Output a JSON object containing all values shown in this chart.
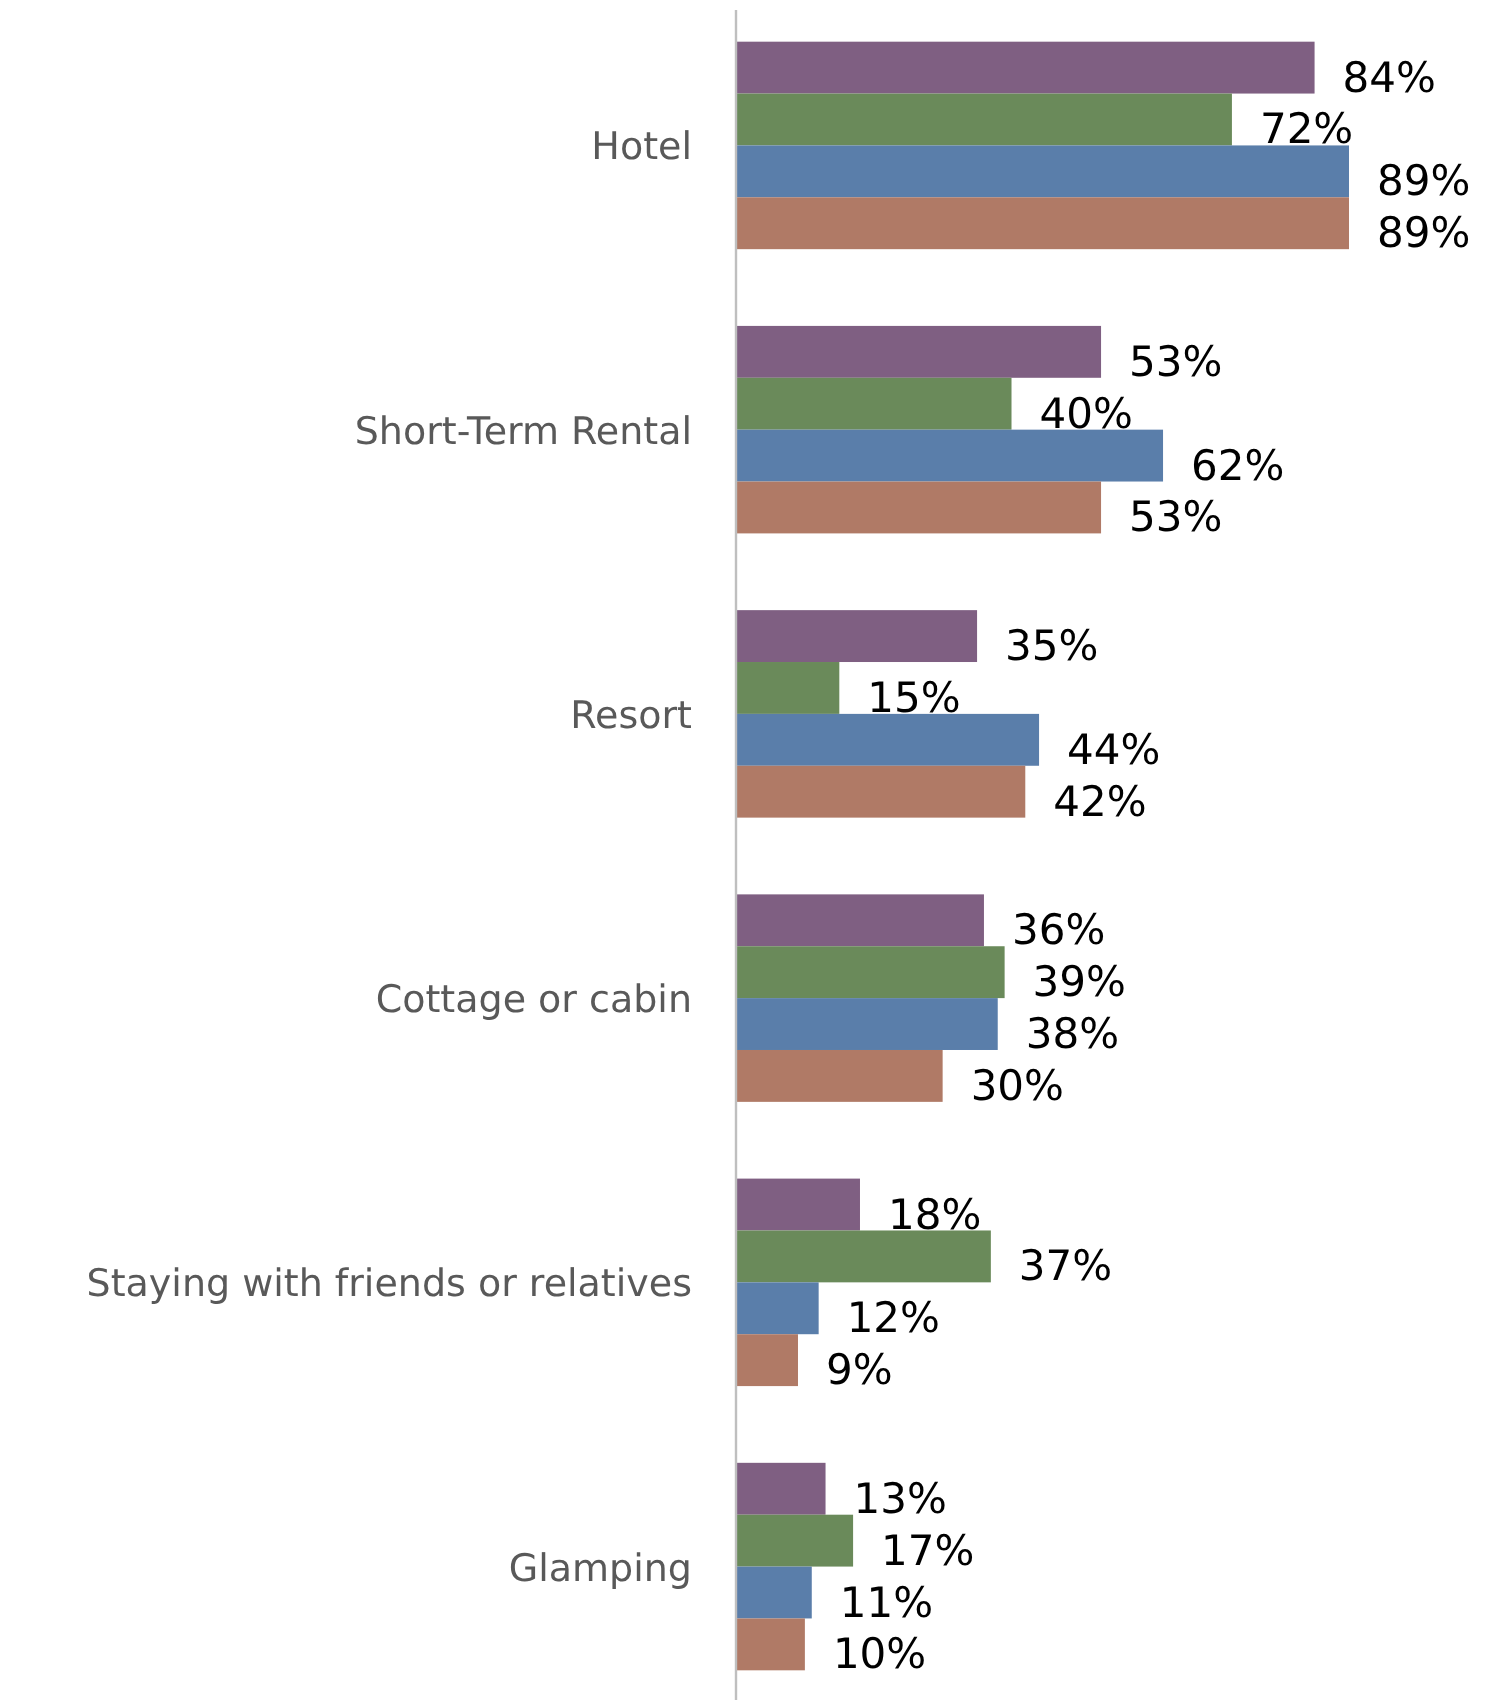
{
  "chart_data": {
    "type": "bar",
    "orientation": "horizontal",
    "categories": [
      "Hotel",
      "Short-Term Rental",
      "Resort",
      "Cottage or cabin",
      "Staying with friends or relatives",
      "Glamping"
    ],
    "series": [
      {
        "color": "#7f5f82",
        "values": [
          84,
          53,
          35,
          36,
          18,
          13
        ],
        "value_labels": [
          "84%",
          "53%",
          "35%",
          "36%",
          "18%",
          "13%"
        ]
      },
      {
        "color": "#6a8a5a",
        "values": [
          72,
          40,
          15,
          39,
          37,
          17
        ],
        "value_labels": [
          "72%",
          "40%",
          "15%",
          "39%",
          "37%",
          "17%"
        ]
      },
      {
        "color": "#5a7eaa",
        "values": [
          89,
          62,
          44,
          38,
          12,
          11
        ],
        "value_labels": [
          "89%",
          "62%",
          "44%",
          "38%",
          "12%",
          "11%"
        ]
      },
      {
        "color": "#b07a66",
        "values": [
          89,
          53,
          42,
          30,
          9,
          10
        ],
        "value_labels": [
          "89%",
          "53%",
          "42%",
          "30%",
          "9%",
          "10%"
        ]
      }
    ]
  }
}
